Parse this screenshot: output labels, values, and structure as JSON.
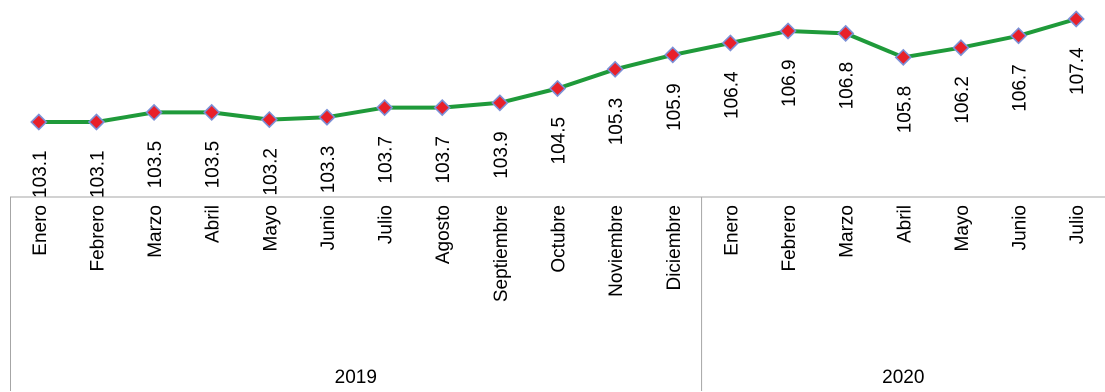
{
  "chart_data": {
    "type": "line",
    "title": "",
    "xlabel": "",
    "ylabel": "",
    "ylim": [
      103.0,
      107.5
    ],
    "grid": false,
    "legend": "none",
    "categories": [
      {
        "month": "Enero",
        "year": "2019"
      },
      {
        "month": "Febrero",
        "year": "2019"
      },
      {
        "month": "Marzo",
        "year": "2019"
      },
      {
        "month": "Abril",
        "year": "2019"
      },
      {
        "month": "Mayo",
        "year": "2019"
      },
      {
        "month": "Junio",
        "year": "2019"
      },
      {
        "month": "Julio",
        "year": "2019"
      },
      {
        "month": "Agosto",
        "year": "2019"
      },
      {
        "month": "Septiembre",
        "year": "2019"
      },
      {
        "month": "Octubre",
        "year": "2019"
      },
      {
        "month": "Noviembre",
        "year": "2019"
      },
      {
        "month": "Diciembre",
        "year": "2019"
      },
      {
        "month": "Enero",
        "year": "2020"
      },
      {
        "month": "Febrero",
        "year": "2020"
      },
      {
        "month": "Marzo",
        "year": "2020"
      },
      {
        "month": "Abril",
        "year": "2020"
      },
      {
        "month": "Mayo",
        "year": "2020"
      },
      {
        "month": "Junio",
        "year": "2020"
      },
      {
        "month": "Julio",
        "year": "2020"
      }
    ],
    "years": [
      "2019",
      "2020"
    ],
    "series": [
      {
        "values": [
          103.1,
          103.1,
          103.5,
          103.5,
          103.2,
          103.3,
          103.7,
          103.7,
          103.9,
          104.5,
          105.3,
          105.9,
          106.4,
          106.9,
          106.8,
          105.8,
          106.2,
          106.7,
          107.4
        ],
        "labels": [
          "103.1",
          "103.1",
          "103.5",
          "103.5",
          "103.2",
          "103.3",
          "103.7",
          "103.7",
          "103.9",
          "104.5",
          "105.3",
          "105.9",
          "106.4",
          "106.9",
          "106.8",
          "105.8",
          "106.2",
          "106.7",
          "107.4"
        ],
        "line_color": "#1f9a3a",
        "marker_fill": "#e8202a",
        "marker_edge": "#7b8fd6"
      }
    ]
  }
}
